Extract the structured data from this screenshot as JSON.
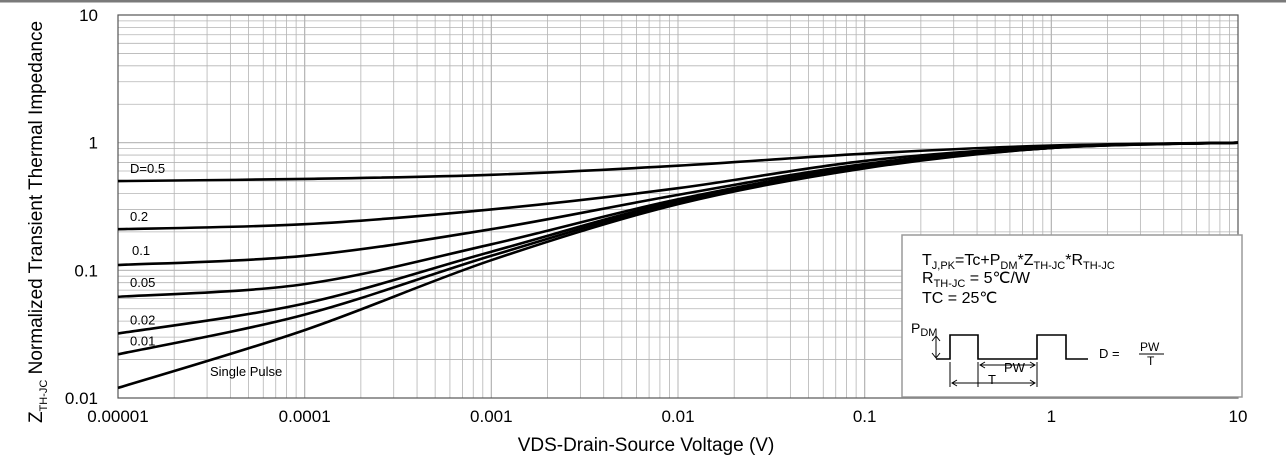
{
  "chart_data": {
    "type": "line",
    "title": "",
    "xlabel": "VDS-Drain-Source Voltage (V)",
    "ylabel": {
      "main": "Z",
      "sub": "TH-JC",
      "rest": " Normalized Transient Thermal Impedance"
    },
    "x_scale": "log",
    "y_scale": "log",
    "xlim": [
      1e-05,
      10
    ],
    "ylim": [
      0.01,
      10
    ],
    "grid": true,
    "x_ticks": [
      {
        "value": 1e-05,
        "label": "0.00001"
      },
      {
        "value": 0.0001,
        "label": "0.0001"
      },
      {
        "value": 0.001,
        "label": "0.001"
      },
      {
        "value": 0.01,
        "label": "0.01"
      },
      {
        "value": 0.1,
        "label": "0.1"
      },
      {
        "value": 1,
        "label": "1"
      },
      {
        "value": 10,
        "label": "10"
      }
    ],
    "y_ticks": [
      {
        "value": 0.01,
        "label": "0.01"
      },
      {
        "value": 0.1,
        "label": "0.1"
      },
      {
        "value": 1,
        "label": "1"
      },
      {
        "value": 10,
        "label": "10"
      }
    ],
    "series": [
      {
        "name": "D=0.5",
        "x": [
          1e-05,
          0.0001,
          0.001,
          0.01,
          0.1,
          1,
          10
        ],
        "values": [
          0.5,
          0.52,
          0.56,
          0.66,
          0.82,
          0.95,
          1.0
        ]
      },
      {
        "name": "0.2",
        "x": [
          1e-05,
          0.0001,
          0.001,
          0.01,
          0.1,
          1,
          10
        ],
        "values": [
          0.21,
          0.23,
          0.3,
          0.44,
          0.72,
          0.93,
          1.0
        ]
      },
      {
        "name": "0.1",
        "x": [
          1e-05,
          0.0001,
          0.001,
          0.01,
          0.1,
          1,
          10
        ],
        "values": [
          0.11,
          0.13,
          0.21,
          0.39,
          0.68,
          0.92,
          1.0
        ]
      },
      {
        "name": "0.05",
        "x": [
          1e-05,
          0.0001,
          0.001,
          0.01,
          0.1,
          1,
          10
        ],
        "values": [
          0.062,
          0.078,
          0.16,
          0.36,
          0.66,
          0.92,
          1.0
        ]
      },
      {
        "name": "0.02",
        "x": [
          1e-05,
          0.0001,
          0.001,
          0.01,
          0.1,
          1,
          10
        ],
        "values": [
          0.032,
          0.055,
          0.14,
          0.35,
          0.65,
          0.91,
          1.0
        ]
      },
      {
        "name": "0.01",
        "x": [
          1e-05,
          0.0001,
          0.001,
          0.01,
          0.1,
          1,
          10
        ],
        "values": [
          0.022,
          0.045,
          0.13,
          0.34,
          0.64,
          0.91,
          1.0
        ]
      },
      {
        "name": "Single Pulse",
        "x": [
          1e-05,
          0.0001,
          0.001,
          0.01,
          0.1,
          1,
          10
        ],
        "values": [
          0.012,
          0.034,
          0.12,
          0.33,
          0.63,
          0.91,
          1.0
        ]
      }
    ],
    "annotations": {
      "formula": {
        "parts": [
          "T",
          "J,PK",
          "=Tc+P",
          "DM",
          "*Z",
          "TH-JC",
          "*R",
          "TH-JC"
        ]
      },
      "rth": {
        "parts": [
          "R",
          "TH-JC",
          " = 5℃/W"
        ]
      },
      "tc": "TC = 25℃",
      "pulse": {
        "pdm": "P",
        "pdm_sub": "DM",
        "pw": "PW",
        "t": "T",
        "d_eq": "D = ",
        "frac_num": "PW",
        "frac_den": "T"
      }
    }
  },
  "colors": {
    "background": "#ffffff",
    "line": "#000000",
    "grid": "#b4b4b4",
    "frame": "#7a7a7a"
  }
}
